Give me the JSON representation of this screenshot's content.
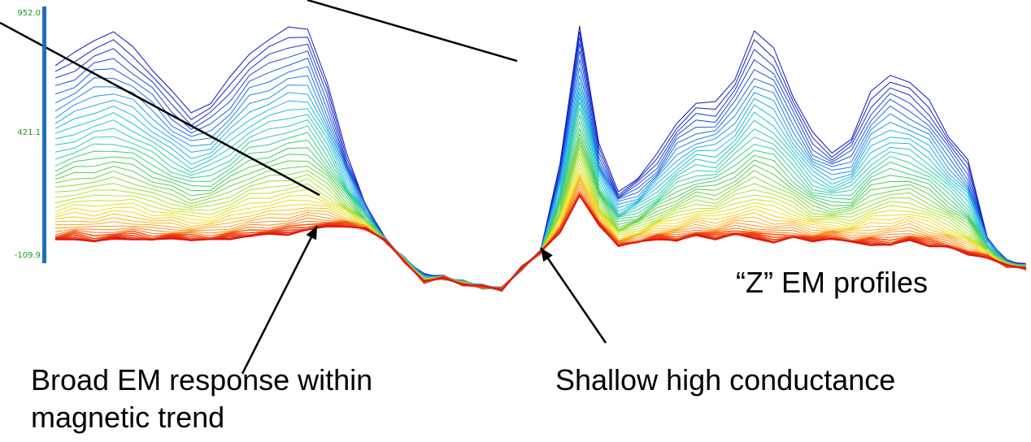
{
  "chart_data": {
    "type": "line",
    "y_ticks": [
      "952.0",
      "421.1",
      "-109.9"
    ],
    "ylim": [
      -109.9,
      952.0
    ],
    "series_count": 40,
    "color_ramp": [
      "#1010c0",
      "#2060e0",
      "#20b8e8",
      "#30d0a0",
      "#50c850",
      "#a8e030",
      "#f0e020",
      "#f8a020",
      "#f05010",
      "#e01010"
    ],
    "x": [
      0,
      2,
      4,
      6,
      8,
      10,
      12,
      14,
      16,
      18,
      20,
      22,
      24,
      26,
      28,
      30,
      32,
      34,
      36,
      38,
      40,
      42,
      44,
      46,
      48,
      50,
      52,
      54,
      56,
      58,
      60,
      62,
      64,
      66,
      68,
      70,
      72,
      74,
      76,
      78,
      80,
      82,
      84,
      86,
      88,
      90,
      92,
      94,
      96,
      98,
      100
    ],
    "baseline": [
      -40,
      -30,
      -45,
      -35,
      -30,
      -40,
      -30,
      -35,
      -40,
      -30,
      -20,
      -15,
      -10,
      5,
      20,
      25,
      10,
      -40,
      -130,
      -220,
      -200,
      -230,
      -240,
      -250,
      -160,
      -90,
      0,
      150,
      30,
      -60,
      -50,
      -30,
      -40,
      -20,
      -30,
      -15,
      -30,
      -45,
      -30,
      -40,
      -30,
      -50,
      -55,
      -60,
      -40,
      -60,
      -70,
      -100,
      -110,
      -150,
      -160
    ],
    "top": [
      720,
      770,
      840,
      860,
      800,
      710,
      600,
      520,
      560,
      660,
      780,
      830,
      880,
      890,
      640,
      340,
      120,
      -40,
      -120,
      -190,
      -200,
      -220,
      -240,
      -250,
      -160,
      -90,
      300,
      900,
      370,
      180,
      230,
      330,
      480,
      550,
      560,
      670,
      860,
      800,
      590,
      420,
      350,
      400,
      600,
      690,
      640,
      570,
      420,
      300,
      -20,
      -130,
      -150
    ]
  },
  "annotations": {
    "z_label": "“Z” EM profiles",
    "broad_line1": "Broad EM response within",
    "broad_line2": "magnetic trend",
    "shallow": "Shallow high conductance"
  }
}
